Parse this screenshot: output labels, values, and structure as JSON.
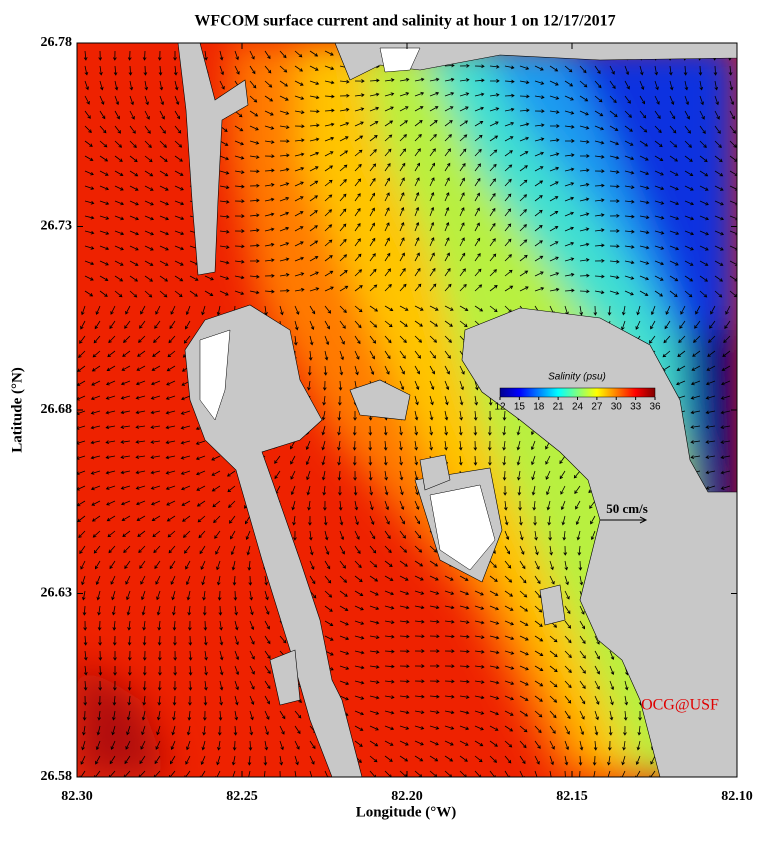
{
  "chart_data": {
    "type": "map",
    "title": "WFCOM surface current and salinity at hour 1 on 12/17/2017",
    "x_label": "Longitude (°W)",
    "y_label": "Latitude (°N)",
    "xlim": [
      82.3,
      82.1
    ],
    "xticks": [
      {
        "value": 82.3,
        "label": "82.30"
      },
      82.25,
      {
        "value": 82.2,
        "label": "82.20"
      },
      82.15,
      {
        "value": 82.1,
        "label": "82.10"
      }
    ],
    "ylim": [
      26.58,
      26.78
    ],
    "yticks": [
      26.78,
      26.73,
      26.68,
      26.63,
      26.58
    ],
    "colorbar": {
      "title": "Salinity (psu)",
      "lim": [
        12,
        36
      ],
      "ticks": [
        12,
        15,
        18,
        21,
        24,
        27,
        30,
        33,
        36
      ],
      "colormap": "jet"
    },
    "scale_label": "50 cm/s",
    "credit": "OCG@USF"
  }
}
